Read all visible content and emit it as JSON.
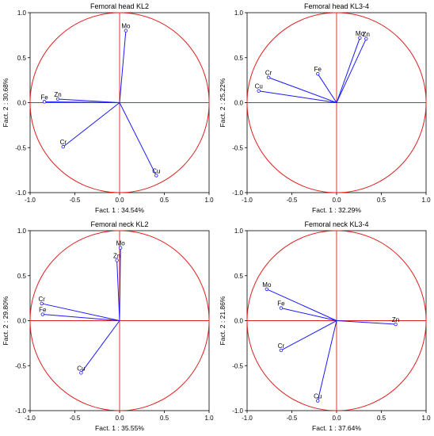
{
  "colors": {
    "circle": "#e02020",
    "vector": "#1a1aff",
    "frame": "#000000",
    "axis_cross": "#e02020"
  },
  "chart_data": [
    {
      "type": "scatter",
      "title": "Femoral head KL2",
      "xlabel": "Fact. 1 : 34.54%",
      "ylabel": "Fact. 2 : 30.68%",
      "xlim": [
        -1.0,
        1.0
      ],
      "ylim": [
        -1.0,
        1.0
      ],
      "xticks": [
        "-1.0",
        "-0.5",
        "0.0",
        "0.5",
        "1.0"
      ],
      "yticks": [
        "1.0",
        "0.5",
        "0.0",
        "-0.5",
        "-1.0"
      ],
      "points": [
        {
          "label": "Mo",
          "x": 0.07,
          "y": 0.8
        },
        {
          "label": "Fe",
          "x": -0.84,
          "y": 0.01
        },
        {
          "label": "Zn",
          "x": -0.69,
          "y": 0.04
        },
        {
          "label": "Cr",
          "x": -0.63,
          "y": -0.49
        },
        {
          "label": "Cu",
          "x": 0.41,
          "y": -0.81
        }
      ]
    },
    {
      "type": "scatter",
      "title": "Femoral head KL3-4",
      "xlabel": "Fact. 1 : 32.29%",
      "ylabel": "Fact. 2 : 25.22%",
      "xlim": [
        -1.0,
        1.0
      ],
      "ylim": [
        -1.0,
        1.0
      ],
      "xticks": [
        "-1.0",
        "-0.5",
        "0.0",
        "0.5",
        "1.0"
      ],
      "yticks": [
        "1.0",
        "0.5",
        "0.0",
        "-0.5",
        "-1.0"
      ],
      "points": [
        {
          "label": "Mo",
          "x": 0.26,
          "y": 0.72
        },
        {
          "label": "Zn",
          "x": 0.33,
          "y": 0.71
        },
        {
          "label": "Fe",
          "x": -0.21,
          "y": 0.32
        },
        {
          "label": "Cr",
          "x": -0.76,
          "y": 0.28
        },
        {
          "label": "Cu",
          "x": -0.87,
          "y": 0.13
        }
      ]
    },
    {
      "type": "scatter",
      "title": "Femoral neck KL2",
      "xlabel": "Fact. 1 : 35.55%",
      "ylabel": "Fact. 2 : 29.80%",
      "xlim": [
        -1.0,
        1.0
      ],
      "ylim": [
        -1.0,
        1.0
      ],
      "xticks": [
        "-1.0",
        "-0.5",
        "0.0",
        "0.5",
        "1.0"
      ],
      "yticks": [
        "1.0",
        "0.5",
        "0.0",
        "-0.5",
        "-1.0"
      ],
      "points": [
        {
          "label": "Mo",
          "x": 0.01,
          "y": 0.81
        },
        {
          "label": "Zn",
          "x": -0.03,
          "y": 0.67
        },
        {
          "label": "Cr",
          "x": -0.87,
          "y": 0.19
        },
        {
          "label": "Fe",
          "x": -0.86,
          "y": 0.07
        },
        {
          "label": "Cu",
          "x": -0.43,
          "y": -0.58
        }
      ]
    },
    {
      "type": "scatter",
      "title": "Femoral neck KL3-4",
      "xlabel": "Fact. 1 : 37.64%",
      "ylabel": "Fact. 2 : 21.86%",
      "xlim": [
        -1.0,
        1.0
      ],
      "ylim": [
        -1.0,
        1.0
      ],
      "xticks": [
        "-1.0",
        "-0.5",
        "0.0",
        "0.5",
        "1.0"
      ],
      "yticks": [
        "1.0",
        "0.5",
        "0.0",
        "-0.5",
        "-1.0"
      ],
      "points": [
        {
          "label": "Mo",
          "x": -0.78,
          "y": 0.35
        },
        {
          "label": "Fe",
          "x": -0.62,
          "y": 0.14
        },
        {
          "label": "Zn",
          "x": 0.66,
          "y": -0.04
        },
        {
          "label": "Cr",
          "x": -0.62,
          "y": -0.33
        },
        {
          "label": "Cu",
          "x": -0.21,
          "y": -0.89
        }
      ]
    }
  ]
}
